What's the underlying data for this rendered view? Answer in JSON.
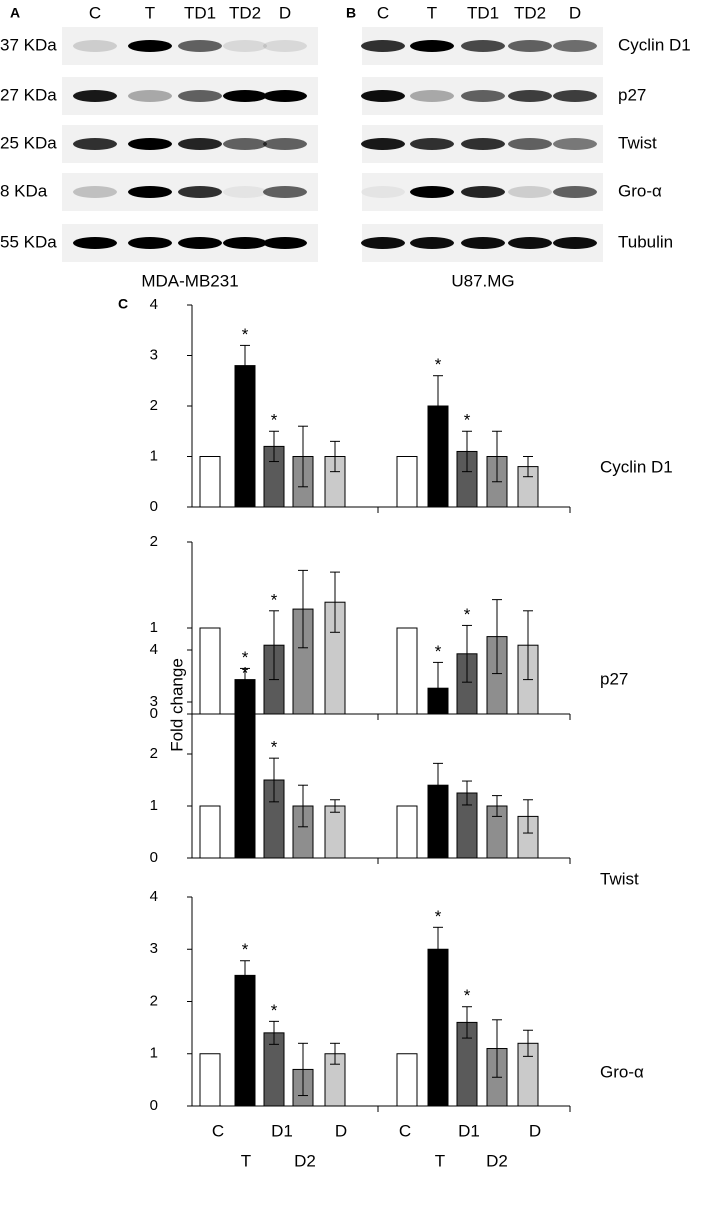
{
  "blots": {
    "panel_a": "A",
    "panel_b": "B",
    "lanes_a": [
      "C",
      "T",
      "TD1",
      "TD2",
      "D"
    ],
    "lanes_b": [
      "C",
      "T",
      "TD1",
      "TD2",
      "D"
    ],
    "kda": [
      "37 KDa",
      "27 KDa",
      "25 KDa",
      "8 KDa",
      "55 KDa"
    ],
    "proteins": [
      "Cyclin D1",
      "p27",
      "Twist",
      "Gro-α",
      "Tubulin"
    ],
    "cell_a": "MDA-MB231",
    "cell_b": "U87.MG"
  },
  "panel_c": "C",
  "ylabel": "Fold change",
  "categories": [
    "C",
    "T",
    "D1",
    "D2",
    "D"
  ],
  "colors": [
    "#ffffff",
    "#000000",
    "#5a5a5a",
    "#8e8e8e",
    "#cacaca"
  ],
  "chart_data": [
    {
      "type": "bar",
      "label": "Cyclin D1",
      "ylim": [
        0,
        4
      ],
      "yticks": [
        0,
        1,
        2,
        3,
        4
      ],
      "groups": [
        {
          "values": [
            1,
            2.8,
            1.2,
            1.0,
            1.0
          ],
          "errors": [
            0,
            0.4,
            0.3,
            0.6,
            0.3
          ],
          "stars": [
            null,
            "*",
            "*",
            null,
            null
          ]
        },
        {
          "values": [
            1,
            2.0,
            1.1,
            1.0,
            0.8
          ],
          "errors": [
            0,
            0.6,
            0.4,
            0.5,
            0.2
          ],
          "stars": [
            null,
            "*",
            "*",
            null,
            null
          ]
        }
      ]
    },
    {
      "type": "bar",
      "label": "p27",
      "ylim": [
        0,
        2
      ],
      "yticks": [
        0,
        1,
        2
      ],
      "groups": [
        {
          "values": [
            1,
            0.4,
            0.8,
            1.22,
            1.3
          ],
          "errors": [
            0,
            0.13,
            0.4,
            0.45,
            0.35
          ],
          "stars": [
            null,
            "*",
            "*",
            null,
            null
          ]
        },
        {
          "values": [
            1,
            0.3,
            0.7,
            0.9,
            0.8
          ],
          "errors": [
            0,
            0.3,
            0.33,
            0.43,
            0.4
          ],
          "stars": [
            null,
            "*",
            "*",
            null,
            null
          ]
        }
      ]
    },
    {
      "type": "bar",
      "label": "Twist",
      "ylim": [
        0,
        4
      ],
      "yticks": [
        0,
        1,
        2,
        3,
        4
      ],
      "groups": [
        {
          "values": [
            1,
            3.2,
            1.5,
            1.0,
            1.0
          ],
          "errors": [
            0,
            0.15,
            0.42,
            0.4,
            0.12
          ],
          "stars": [
            null,
            "*",
            "*",
            null,
            null
          ]
        },
        {
          "values": [
            1,
            1.4,
            1.25,
            1.0,
            0.8
          ],
          "errors": [
            0,
            0.42,
            0.23,
            0.2,
            0.32
          ],
          "stars": [
            null,
            null,
            null,
            null,
            null
          ]
        }
      ]
    },
    {
      "type": "bar",
      "label": "Gro-α",
      "ylim": [
        0,
        4
      ],
      "yticks": [
        0,
        1,
        2,
        3,
        4
      ],
      "groups": [
        {
          "values": [
            1,
            2.5,
            1.4,
            0.7,
            1.0
          ],
          "errors": [
            0,
            0.28,
            0.22,
            0.5,
            0.2
          ],
          "stars": [
            null,
            "*",
            "*",
            null,
            null
          ]
        },
        {
          "values": [
            1,
            3.0,
            1.6,
            1.1,
            1.2
          ],
          "errors": [
            0,
            0.42,
            0.3,
            0.55,
            0.25
          ],
          "stars": [
            null,
            "*",
            "*",
            null,
            null
          ]
        }
      ]
    }
  ]
}
